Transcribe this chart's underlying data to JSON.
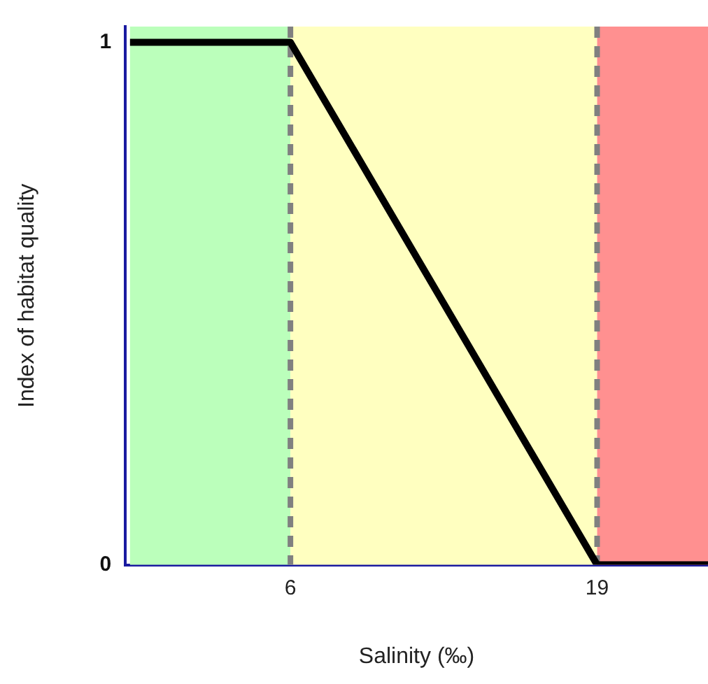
{
  "chart_data": {
    "type": "line",
    "xlabel": "Salinity (‰)",
    "ylabel": "Index of habitat quality",
    "xlim": [
      -1,
      23.7
    ],
    "xticks": [
      6,
      19
    ],
    "ylim": [
      0,
      1.03
    ],
    "yticks": [
      0,
      1
    ],
    "grid": false,
    "legend": false,
    "marker": "none",
    "line_style": "solid",
    "series": [
      {
        "color": "#000000",
        "x": [
          -0.8,
          6,
          19,
          23.7
        ],
        "values": [
          1,
          1,
          0,
          0
        ]
      }
    ],
    "bands": [
      {
        "axis": "x",
        "from": -0.8,
        "to": 6,
        "color": "#bbffbb"
      },
      {
        "axis": "x",
        "from": 6,
        "to": 19,
        "color": "#ffffc0"
      },
      {
        "axis": "x",
        "from": 19,
        "to": 23.7,
        "color": "#ff9090"
      }
    ],
    "ref_lines": [
      {
        "axis": "x",
        "value": 6,
        "color": "#808080",
        "line_style": "dashed"
      },
      {
        "axis": "x",
        "value": 19,
        "color": "#808080",
        "line_style": "dashed"
      }
    ]
  }
}
